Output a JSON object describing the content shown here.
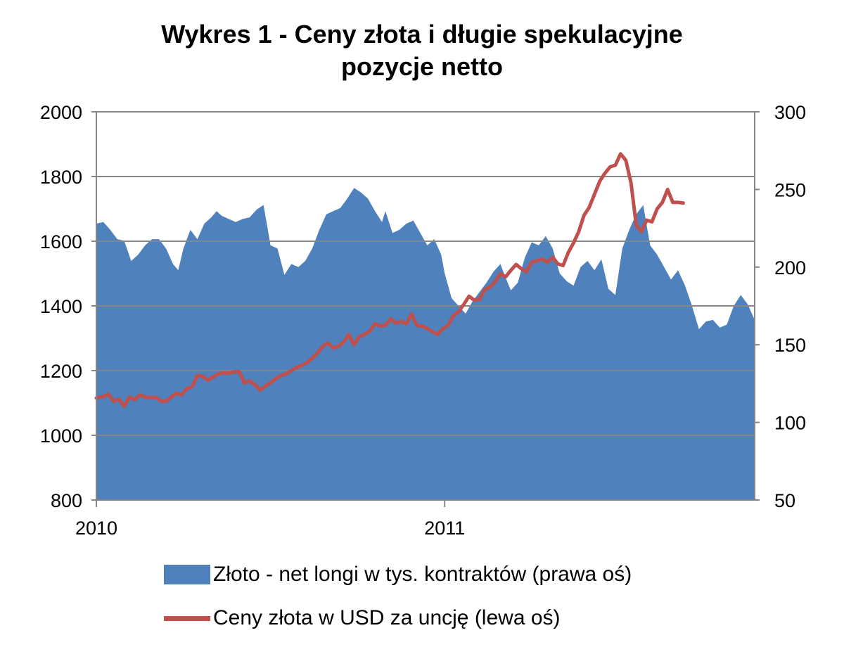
{
  "chart_data": {
    "type": "line+area",
    "title_line1": "Wykres 1 - Ceny złota i długie spekulacyjne",
    "title_line2": "pozycje netto",
    "left_axis": {
      "min": 800,
      "max": 2000,
      "ticks": [
        "2000",
        "1800",
        "1600",
        "1400",
        "1200",
        "1000",
        "800"
      ]
    },
    "right_axis": {
      "min": 50,
      "max": 300,
      "ticks": [
        "300",
        "250",
        "200",
        "150",
        "100",
        "50"
      ]
    },
    "x_axis": {
      "start": 2010.0,
      "end": 2011.89,
      "ticks": [
        {
          "label": "2010",
          "x": 2010.0
        },
        {
          "label": "2011",
          "x": 2011.0
        }
      ]
    },
    "grid": true,
    "legend_position": "bottom",
    "series": [
      {
        "name": "Złoto - net longi w tys. kontraktów (prawa oś)",
        "axis": "right",
        "kind": "area",
        "color": "#4f81bd",
        "points": [
          [
            2010.0,
            228
          ],
          [
            2010.02,
            229
          ],
          [
            2010.04,
            224
          ],
          [
            2010.06,
            218
          ],
          [
            2010.08,
            217
          ],
          [
            2010.1,
            204
          ],
          [
            2010.12,
            208
          ],
          [
            2010.14,
            214
          ],
          [
            2010.16,
            218
          ],
          [
            2010.18,
            218
          ],
          [
            2010.2,
            212
          ],
          [
            2010.22,
            202
          ],
          [
            2010.235,
            198
          ],
          [
            2010.25,
            212
          ],
          [
            2010.27,
            224
          ],
          [
            2010.29,
            218
          ],
          [
            2010.31,
            228
          ],
          [
            2010.33,
            232
          ],
          [
            2010.345,
            236
          ],
          [
            2010.36,
            233
          ],
          [
            2010.38,
            231
          ],
          [
            2010.4,
            229
          ],
          [
            2010.42,
            231
          ],
          [
            2010.44,
            232
          ],
          [
            2010.46,
            237
          ],
          [
            2010.48,
            240
          ],
          [
            2010.5,
            214
          ],
          [
            2010.52,
            212
          ],
          [
            2010.54,
            195
          ],
          [
            2010.56,
            202
          ],
          [
            2010.58,
            200
          ],
          [
            2010.6,
            204
          ],
          [
            2010.62,
            212
          ],
          [
            2010.64,
            224
          ],
          [
            2010.66,
            234
          ],
          [
            2010.68,
            236
          ],
          [
            2010.7,
            238
          ],
          [
            2010.72,
            244
          ],
          [
            2010.74,
            251
          ],
          [
            2010.76,
            248
          ],
          [
            2010.78,
            244
          ],
          [
            2010.8,
            236
          ],
          [
            2010.82,
            229
          ],
          [
            2010.83,
            236
          ],
          [
            2010.85,
            222
          ],
          [
            2010.87,
            224
          ],
          [
            2010.89,
            228
          ],
          [
            2010.91,
            230
          ],
          [
            2010.93,
            222
          ],
          [
            2010.95,
            214
          ],
          [
            2010.97,
            218
          ],
          [
            2010.99,
            208
          ],
          [
            2011.0,
            196
          ],
          [
            2011.02,
            180
          ],
          [
            2011.04,
            175
          ],
          [
            2011.06,
            170
          ],
          [
            2011.08,
            178
          ],
          [
            2011.1,
            184
          ],
          [
            2011.12,
            190
          ],
          [
            2011.14,
            197
          ],
          [
            2011.16,
            202
          ],
          [
            2011.17,
            196
          ],
          [
            2011.19,
            185
          ],
          [
            2011.21,
            190
          ],
          [
            2011.23,
            206
          ],
          [
            2011.25,
            216
          ],
          [
            2011.27,
            214
          ],
          [
            2011.29,
            220
          ],
          [
            2011.31,
            212
          ],
          [
            2011.33,
            196
          ],
          [
            2011.35,
            191
          ],
          [
            2011.37,
            188
          ],
          [
            2011.39,
            200
          ],
          [
            2011.41,
            204
          ],
          [
            2011.43,
            198
          ],
          [
            2011.45,
            205
          ],
          [
            2011.47,
            186
          ],
          [
            2011.49,
            182
          ],
          [
            2011.51,
            212
          ],
          [
            2011.53,
            224
          ],
          [
            2011.55,
            234
          ],
          [
            2011.57,
            240
          ],
          [
            2011.59,
            214
          ],
          [
            2011.61,
            208
          ],
          [
            2011.63,
            200
          ],
          [
            2011.65,
            192
          ],
          [
            2011.67,
            198
          ],
          [
            2011.69,
            188
          ],
          [
            2011.71,
            175
          ],
          [
            2011.73,
            160
          ],
          [
            2011.75,
            165
          ],
          [
            2011.77,
            166
          ],
          [
            2011.79,
            161
          ],
          [
            2011.81,
            163
          ],
          [
            2011.83,
            175
          ],
          [
            2011.85,
            182
          ],
          [
            2011.87,
            176
          ],
          [
            2011.89,
            166
          ]
        ]
      },
      {
        "name": "Ceny złota w USD za uncję (lewa oś)",
        "axis": "left",
        "kind": "line",
        "color": "#c0504d",
        "points": [
          [
            2010.0,
            1115
          ],
          [
            2010.02,
            1120
          ],
          [
            2010.035,
            1127
          ],
          [
            2010.05,
            1105
          ],
          [
            2010.065,
            1112
          ],
          [
            2010.08,
            1090
          ],
          [
            2010.095,
            1118
          ],
          [
            2010.11,
            1110
          ],
          [
            2010.125,
            1125
          ],
          [
            2010.14,
            1118
          ],
          [
            2010.155,
            1117
          ],
          [
            2010.17,
            1118
          ],
          [
            2010.185,
            1106
          ],
          [
            2010.2,
            1105
          ],
          [
            2010.215,
            1118
          ],
          [
            2010.23,
            1130
          ],
          [
            2010.245,
            1125
          ],
          [
            2010.26,
            1145
          ],
          [
            2010.275,
            1150
          ],
          [
            2010.29,
            1185
          ],
          [
            2010.305,
            1183
          ],
          [
            2010.32,
            1170
          ],
          [
            2010.335,
            1180
          ],
          [
            2010.35,
            1190
          ],
          [
            2010.365,
            1193
          ],
          [
            2010.38,
            1192
          ],
          [
            2010.395,
            1196
          ],
          [
            2010.41,
            1197
          ],
          [
            2010.425,
            1162
          ],
          [
            2010.44,
            1168
          ],
          [
            2010.455,
            1157
          ],
          [
            2010.47,
            1140
          ],
          [
            2010.485,
            1152
          ],
          [
            2010.5,
            1162
          ],
          [
            2010.515,
            1175
          ],
          [
            2010.53,
            1185
          ],
          [
            2010.545,
            1190
          ],
          [
            2010.56,
            1200
          ],
          [
            2010.575,
            1210
          ],
          [
            2010.59,
            1216
          ],
          [
            2010.605,
            1225
          ],
          [
            2010.62,
            1238
          ],
          [
            2010.635,
            1255
          ],
          [
            2010.65,
            1275
          ],
          [
            2010.665,
            1285
          ],
          [
            2010.68,
            1270
          ],
          [
            2010.695,
            1275
          ],
          [
            2010.71,
            1288
          ],
          [
            2010.725,
            1312
          ],
          [
            2010.74,
            1280
          ],
          [
            2010.755,
            1305
          ],
          [
            2010.77,
            1312
          ],
          [
            2010.785,
            1322
          ],
          [
            2010.8,
            1345
          ],
          [
            2010.815,
            1338
          ],
          [
            2010.83,
            1340
          ],
          [
            2010.845,
            1360
          ],
          [
            2010.86,
            1347
          ],
          [
            2010.875,
            1352
          ],
          [
            2010.89,
            1345
          ],
          [
            2010.905,
            1375
          ],
          [
            2010.92,
            1340
          ],
          [
            2010.935,
            1338
          ],
          [
            2010.95,
            1330
          ],
          [
            2010.965,
            1320
          ],
          [
            2010.98,
            1312
          ],
          [
            2010.995,
            1330
          ],
          [
            2011.01,
            1340
          ],
          [
            2011.025,
            1370
          ],
          [
            2011.04,
            1382
          ],
          [
            2011.055,
            1405
          ],
          [
            2011.07,
            1430
          ],
          [
            2011.085,
            1418
          ],
          [
            2011.1,
            1420
          ],
          [
            2011.115,
            1450
          ],
          [
            2011.13,
            1458
          ],
          [
            2011.145,
            1475
          ],
          [
            2011.16,
            1500
          ],
          [
            2011.175,
            1490
          ],
          [
            2011.19,
            1510
          ],
          [
            2011.205,
            1528
          ],
          [
            2011.22,
            1515
          ],
          [
            2011.235,
            1505
          ],
          [
            2011.25,
            1535
          ],
          [
            2011.265,
            1540
          ],
          [
            2011.28,
            1545
          ],
          [
            2011.295,
            1535
          ],
          [
            2011.31,
            1550
          ],
          [
            2011.325,
            1530
          ],
          [
            2011.34,
            1525
          ],
          [
            2011.355,
            1565
          ],
          [
            2011.37,
            1595
          ],
          [
            2011.385,
            1630
          ],
          [
            2011.4,
            1680
          ],
          [
            2011.415,
            1705
          ],
          [
            2011.43,
            1745
          ],
          [
            2011.445,
            1785
          ],
          [
            2011.46,
            1810
          ],
          [
            2011.475,
            1830
          ],
          [
            2011.49,
            1835
          ],
          [
            2011.505,
            1870
          ],
          [
            2011.52,
            1850
          ],
          [
            2011.535,
            1780
          ],
          [
            2011.55,
            1650
          ],
          [
            2011.565,
            1630
          ],
          [
            2011.58,
            1665
          ],
          [
            2011.595,
            1660
          ],
          [
            2011.61,
            1700
          ],
          [
            2011.625,
            1720
          ],
          [
            2011.64,
            1760
          ],
          [
            2011.655,
            1720
          ],
          [
            2011.67,
            1720
          ],
          [
            2011.685,
            1718
          ]
        ]
      }
    ]
  }
}
